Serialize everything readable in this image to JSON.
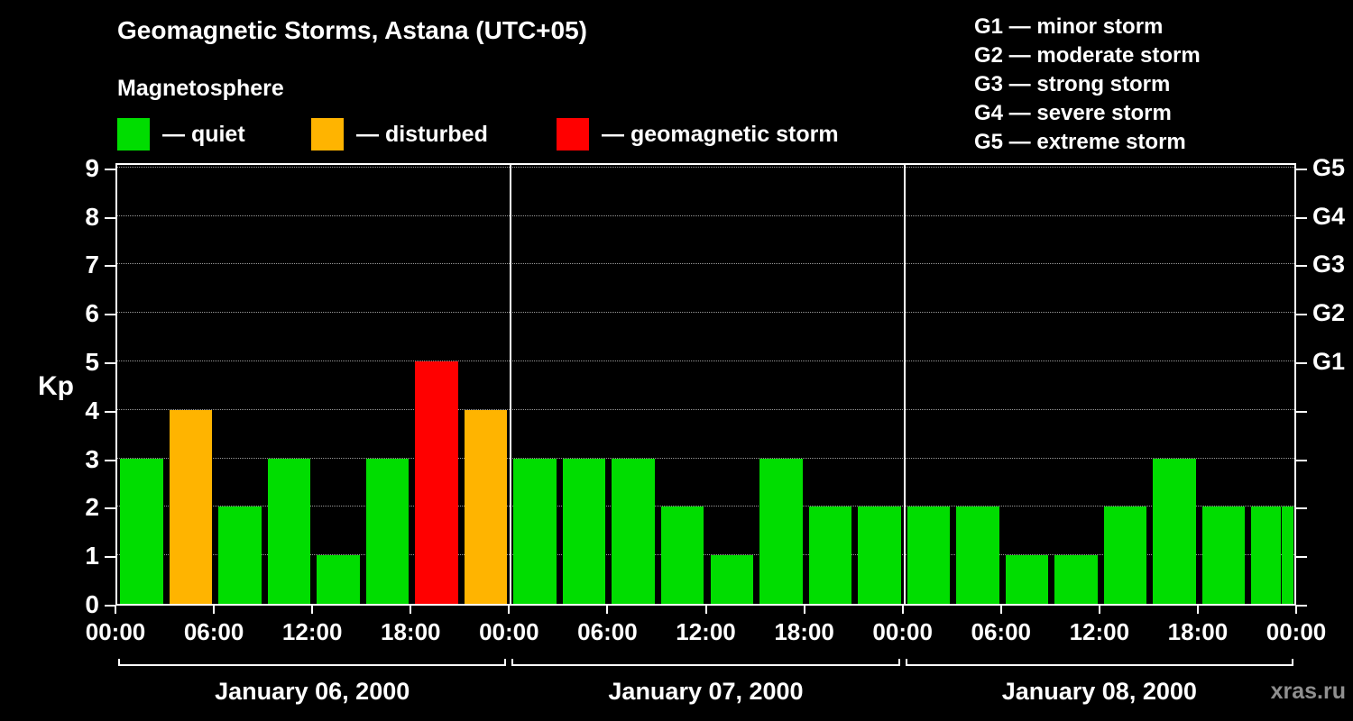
{
  "title": "Geomagnetic Storms, Astana (UTC+05)",
  "subtitle": "Magnetosphere",
  "legend": {
    "quiet": "— quiet",
    "disturbed": "— disturbed",
    "storm": "— geomagnetic storm"
  },
  "g_legend": [
    "G1 — minor storm",
    "G2 — moderate storm",
    "G3 — strong storm",
    "G4 — severe storm",
    "G5 — extreme storm"
  ],
  "watermark": "xras.ru",
  "axis": {
    "kp_label": "Kp",
    "y_ticks": [
      0,
      1,
      2,
      3,
      4,
      5,
      6,
      7,
      8,
      9
    ],
    "right_ticks": [
      {
        "value": 5,
        "label": "G1"
      },
      {
        "value": 6,
        "label": "G2"
      },
      {
        "value": 7,
        "label": "G3"
      },
      {
        "value": 8,
        "label": "G4"
      },
      {
        "value": 9,
        "label": "G5"
      }
    ],
    "x_labels": [
      "00:00",
      "06:00",
      "12:00",
      "18:00",
      "00:00",
      "06:00",
      "12:00",
      "18:00",
      "00:00",
      "06:00",
      "12:00",
      "18:00",
      "00:00"
    ]
  },
  "days": [
    {
      "label": "January 06, 2000"
    },
    {
      "label": "January 07, 2000"
    },
    {
      "label": "January 08, 2000"
    }
  ],
  "chart_data": {
    "type": "bar",
    "title": "Geomagnetic Storms, Astana (UTC+05)",
    "ylabel": "Kp",
    "ylim": [
      0,
      9
    ],
    "interval_hours": 3,
    "timezone": "UTC+05",
    "days": [
      {
        "date": "January 06, 2000",
        "kp": [
          3,
          4,
          2,
          3,
          1,
          3,
          5,
          4
        ]
      },
      {
        "date": "January 07, 2000",
        "kp": [
          3,
          3,
          3,
          2,
          1,
          3,
          2,
          2
        ]
      },
      {
        "date": "January 08, 2000",
        "kp": [
          2,
          2,
          1,
          1,
          2,
          3,
          2,
          2
        ]
      }
    ],
    "partial_next": {
      "kp": 2
    },
    "color_rules": {
      "storm_min": 5,
      "disturbed": 4
    },
    "colors": {
      "quiet": "#00dd00",
      "disturbed": "#ffb400",
      "storm": "#ff0000"
    }
  }
}
